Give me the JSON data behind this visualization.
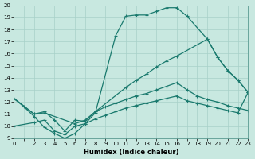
{
  "xlabel": "Humidex (Indice chaleur)",
  "bg_color": "#c8e8e0",
  "line_color": "#1a7a6e",
  "grid_color": "#a8d0c8",
  "xlim": [
    0,
    23
  ],
  "ylim": [
    9,
    20
  ],
  "xticks": [
    0,
    1,
    2,
    3,
    4,
    5,
    6,
    7,
    8,
    9,
    10,
    11,
    12,
    13,
    14,
    15,
    16,
    17,
    18,
    19,
    20,
    21,
    22,
    23
  ],
  "yticks": [
    9,
    10,
    11,
    12,
    13,
    14,
    15,
    16,
    17,
    18,
    19,
    20
  ],
  "curve1_x": [
    0,
    1,
    2,
    3,
    4,
    5,
    6,
    7,
    8,
    10,
    11,
    12,
    13,
    14,
    15,
    16,
    17,
    19,
    20,
    21,
    22,
    23
  ],
  "curve1_y": [
    12.3,
    11.6,
    10.8,
    9.9,
    9.4,
    9.0,
    9.4,
    10.2,
    11.1,
    17.5,
    19.1,
    19.2,
    19.2,
    19.5,
    19.8,
    19.8,
    19.1,
    17.2,
    15.7,
    14.6,
    13.8,
    12.8
  ],
  "curve2_x": [
    0,
    2,
    3,
    6,
    7,
    8,
    11,
    12,
    13,
    14,
    15,
    16,
    19,
    20,
    21,
    22,
    23
  ],
  "curve2_y": [
    12.3,
    11.0,
    11.1,
    10.2,
    10.5,
    11.2,
    13.2,
    13.8,
    14.3,
    14.9,
    15.4,
    15.8,
    17.2,
    15.7,
    14.6,
    13.8,
    12.8
  ],
  "curve3_x": [
    0,
    2,
    3,
    4,
    5,
    6,
    7,
    8,
    9,
    10,
    11,
    12,
    13,
    14,
    15,
    16,
    17,
    18,
    19,
    20,
    21,
    22,
    23
  ],
  "curve3_y": [
    12.3,
    11.0,
    11.2,
    10.5,
    9.6,
    10.5,
    10.4,
    11.2,
    11.6,
    11.9,
    12.2,
    12.5,
    12.7,
    13.0,
    13.3,
    13.6,
    13.0,
    12.5,
    12.2,
    12.0,
    11.7,
    11.5,
    11.3
  ],
  "curve4_x": [
    0,
    2,
    3,
    4,
    5,
    6,
    7,
    8,
    9,
    10,
    11,
    12,
    13,
    14,
    15,
    16,
    17,
    18,
    19,
    20,
    21,
    22,
    23
  ],
  "curve4_y": [
    10.0,
    10.3,
    10.5,
    9.6,
    9.3,
    10.0,
    10.2,
    10.6,
    10.9,
    11.2,
    11.5,
    11.7,
    11.9,
    12.1,
    12.3,
    12.5,
    12.1,
    11.9,
    11.7,
    11.5,
    11.3,
    11.1,
    12.8
  ]
}
